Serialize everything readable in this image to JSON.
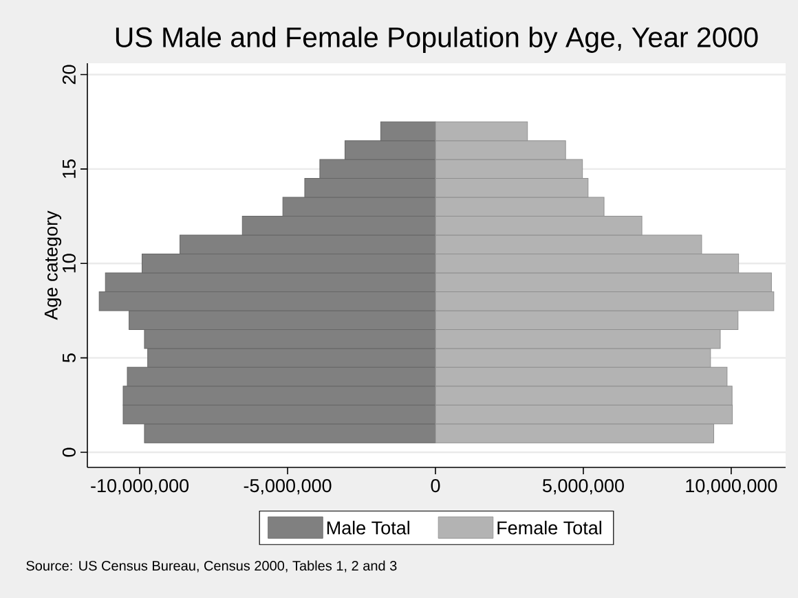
{
  "chart_data": {
    "type": "bar",
    "orientation": "horizontal",
    "stacked": true,
    "title": "US Male and Female Population by Age, Year 2000",
    "ylabel": "Age category",
    "annotations": [
      "Source: US Census Bureau, Census 2000, Tables 1, 2 and 3"
    ],
    "x": [
      1,
      2,
      3,
      4,
      5,
      6,
      7,
      8,
      9,
      10,
      11,
      12,
      13,
      14,
      15,
      16,
      17
    ],
    "series": [
      {
        "name": "Male Total",
        "color": "#808080",
        "values": [
          -9840000,
          -10560000,
          -10560000,
          -10420000,
          -9730000,
          -9840000,
          -10360000,
          -11370000,
          -11160000,
          -9920000,
          -8640000,
          -6530000,
          -5160000,
          -4420000,
          -3910000,
          -3060000,
          -1850000
        ]
      },
      {
        "name": "Female Total",
        "color": "#b3b3b3",
        "values": [
          9410000,
          10040000,
          10030000,
          9860000,
          9300000,
          9630000,
          10230000,
          11440000,
          11360000,
          10250000,
          9000000,
          6980000,
          5700000,
          5160000,
          4970000,
          4400000,
          3110000
        ]
      }
    ],
    "xlim": [
      -11770000,
      11840000
    ],
    "xticks": [
      {
        "value": -10000000,
        "label": "-10,000,000"
      },
      {
        "value": -5000000,
        "label": "-5,000,000"
      },
      0,
      {
        "value": 5000000,
        "label": "5,000,000"
      },
      {
        "value": 10000000,
        "label": "10,000,000"
      }
    ],
    "ylim": [
      -0.8,
      20.6
    ],
    "yticks": [
      0,
      5,
      10,
      15,
      20
    ],
    "grid": "y",
    "legend": "bottom"
  }
}
